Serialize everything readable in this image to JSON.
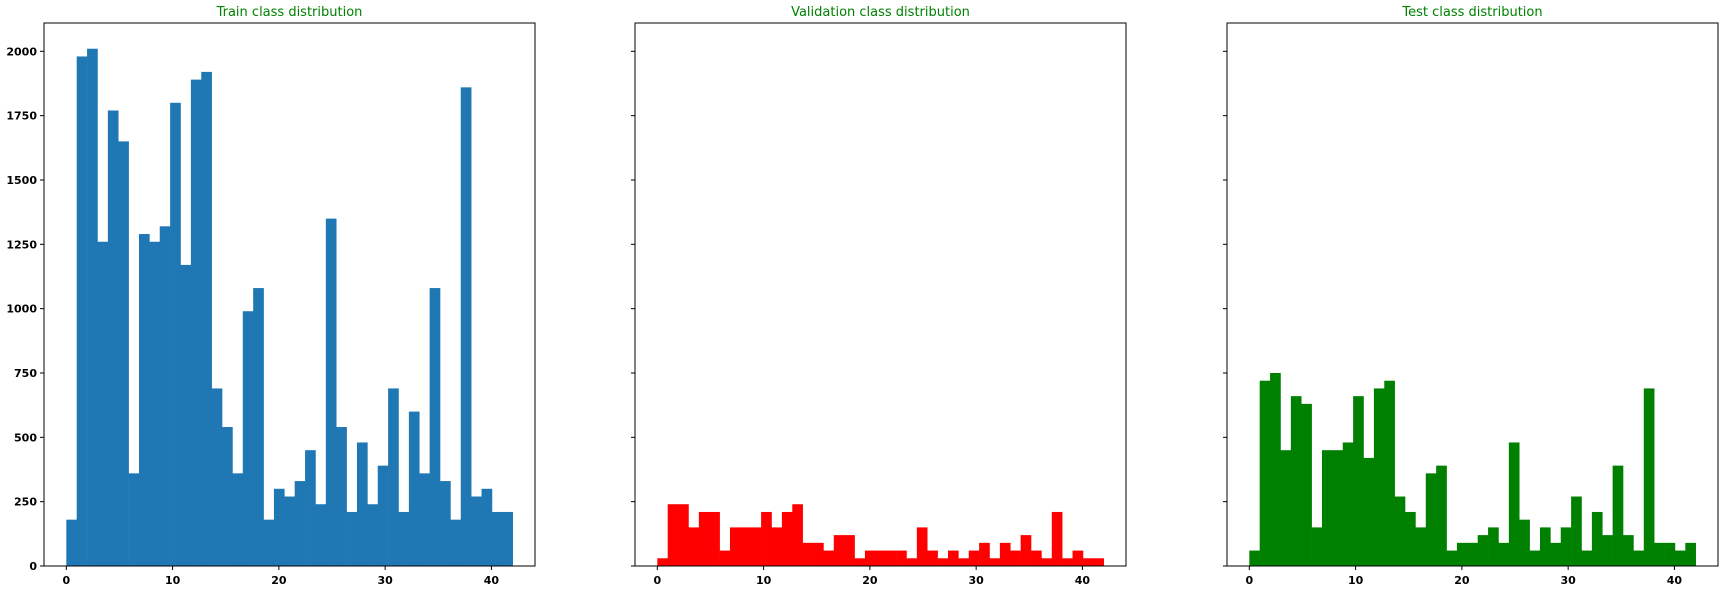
{
  "chart_data": [
    {
      "type": "bar",
      "title": "Train class distribution",
      "color": "#1f77b4",
      "bin_edges_start": 0,
      "bin_edges_end": 42,
      "bins": 43,
      "values": [
        180,
        1980,
        2010,
        1260,
        1770,
        1650,
        360,
        1290,
        1260,
        1320,
        1800,
        1170,
        1890,
        1920,
        690,
        540,
        360,
        990,
        1080,
        180,
        300,
        270,
        330,
        450,
        240,
        1350,
        540,
        210,
        480,
        240,
        390,
        690,
        210,
        600,
        360,
        1080,
        330,
        180,
        1860,
        270,
        300,
        210,
        210
      ],
      "xlim": [
        -2.1,
        44.1
      ],
      "ylim": [
        0,
        2110
      ],
      "xticks": [
        0,
        10,
        20,
        30,
        40
      ],
      "yticks": [
        0,
        250,
        500,
        750,
        1000,
        1250,
        1500,
        1750,
        2000
      ],
      "show_ytick_labels": true
    },
    {
      "type": "bar",
      "title": "Validation class distribution",
      "color": "#ff0000",
      "bin_edges_start": 0,
      "bin_edges_end": 42,
      "bins": 43,
      "values": [
        30,
        240,
        240,
        150,
        210,
        210,
        60,
        150,
        150,
        150,
        210,
        150,
        210,
        240,
        90,
        90,
        60,
        120,
        120,
        30,
        60,
        60,
        60,
        60,
        30,
        150,
        60,
        30,
        60,
        30,
        60,
        90,
        30,
        90,
        60,
        120,
        60,
        30,
        210,
        30,
        60,
        30,
        30
      ],
      "xlim": [
        -2.1,
        44.1
      ],
      "ylim": [
        0,
        2110
      ],
      "xticks": [
        0,
        10,
        20,
        30,
        40
      ],
      "yticks": [
        0,
        250,
        500,
        750,
        1000,
        1250,
        1500,
        1750,
        2000
      ],
      "show_ytick_labels": false
    },
    {
      "type": "bar",
      "title": "Test class distribution",
      "color": "#008000",
      "bin_edges_start": 0,
      "bin_edges_end": 42,
      "bins": 43,
      "values": [
        60,
        720,
        750,
        450,
        660,
        630,
        150,
        450,
        450,
        480,
        660,
        420,
        690,
        720,
        270,
        210,
        150,
        360,
        390,
        60,
        90,
        90,
        120,
        150,
        90,
        480,
        180,
        60,
        150,
        90,
        150,
        270,
        60,
        210,
        120,
        390,
        120,
        60,
        690,
        90,
        90,
        60,
        90
      ],
      "xlim": [
        -2.1,
        44.1
      ],
      "ylim": [
        0,
        2110
      ],
      "xticks": [
        0,
        10,
        20,
        30,
        40
      ],
      "yticks": [
        0,
        250,
        500,
        750,
        1000,
        1250,
        1500,
        1750,
        2000
      ],
      "show_ytick_labels": false
    }
  ]
}
